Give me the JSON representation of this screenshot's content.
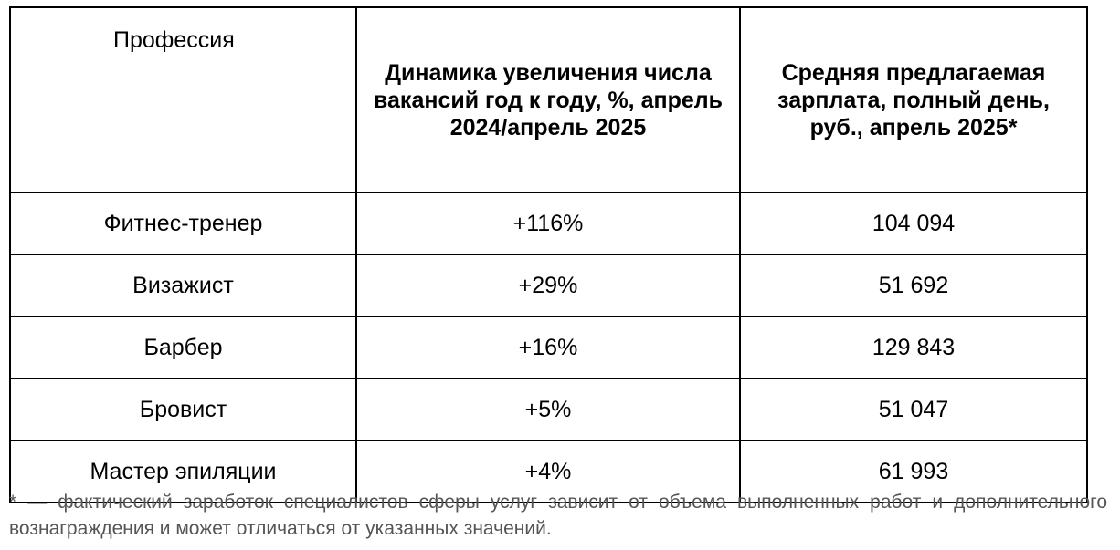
{
  "table": {
    "headers": [
      "Профессия",
      "Динамика увеличения числа вакансий год к году, %, апрель 2024/апрель 2025",
      "Средняя предлагаемая зарплата, полный день, руб., апрель 2025*"
    ],
    "rows": [
      {
        "profession": "Фитнес-тренер",
        "growth": "+116%",
        "salary": "104 094"
      },
      {
        "profession": "Визажист",
        "growth": "+29%",
        "salary": "51 692"
      },
      {
        "profession": "Барбер",
        "growth": "+16%",
        "salary": "129 843"
      },
      {
        "profession": "Бровист",
        "growth": "+5%",
        "salary": "51 047"
      },
      {
        "profession": "Мастер эпиляции",
        "growth": "+4%",
        "salary": "61 993"
      }
    ]
  },
  "footnote": "* — фактический заработок специалистов сферы услуг зависит от объема выполненных работ и дополнительного вознаграждения и может отличаться от указанных значений."
}
